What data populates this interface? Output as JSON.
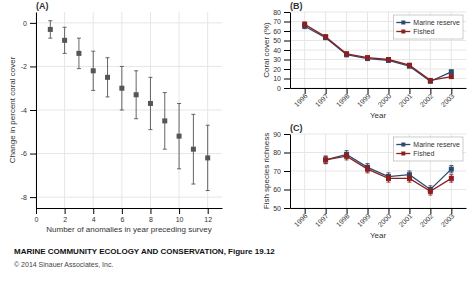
{
  "chart_data": [
    {
      "type": "scatter",
      "title": "(A)",
      "x": [
        1,
        2,
        3,
        4,
        5,
        6,
        7,
        8,
        9,
        10,
        11,
        12
      ],
      "y": [
        -0.3,
        -0.8,
        -1.4,
        -2.2,
        -2.5,
        -3.0,
        -3.3,
        -3.7,
        -4.5,
        -5.2,
        -5.8,
        -6.2
      ],
      "error_low": [
        0.4,
        0.6,
        0.7,
        0.9,
        0.9,
        1.0,
        1.1,
        1.2,
        1.3,
        1.5,
        1.6,
        1.5
      ],
      "error_high": [
        0.4,
        0.6,
        0.7,
        0.9,
        0.9,
        1.0,
        1.1,
        1.2,
        1.3,
        1.5,
        1.6,
        1.5
      ],
      "xlabel": "Number of anomalies in year preceding survey",
      "ylabel": "Change in percent coral cover",
      "xlim": [
        0,
        13
      ],
      "ylim": [
        -8.5,
        0.5
      ],
      "xticks": [
        0,
        2,
        4,
        6,
        8,
        10,
        12
      ],
      "yticks": [
        0,
        -2,
        -4,
        -6,
        -8
      ],
      "grid": true,
      "color": "#555555",
      "marker": "square",
      "annotations": [
        "MARINE COMMUNITY ECOLOGY AND CONSERVATION, Figure 19.12",
        "© 2014 Sinauer Associates, Inc."
      ]
    },
    {
      "type": "line",
      "title": "(B)",
      "x": [
        1996,
        1997,
        1998,
        1999,
        2000,
        2001,
        2002,
        2003
      ],
      "series": [
        {
          "name": "Marine reserve",
          "color": "#2c4a6e",
          "values": [
            65,
            53,
            35,
            31,
            29,
            23,
            7,
            17
          ],
          "errors": [
            2.5,
            2.0,
            2.0,
            1.5,
            1.5,
            1.5,
            1.0,
            2.0
          ]
        },
        {
          "name": "Fished",
          "color": "#8b2020",
          "values": [
            67,
            54,
            36,
            32,
            30,
            24,
            8,
            12
          ],
          "errors": [
            2.5,
            2.0,
            2.0,
            1.5,
            1.5,
            1.5,
            1.0,
            1.5
          ]
        }
      ],
      "xlabel": "Year",
      "ylabel": "Coral cover (%)",
      "xlim": [
        1995.3,
        2003.7
      ],
      "ylim": [
        0,
        80
      ],
      "xticks": [
        1996,
        1997,
        1998,
        1999,
        2000,
        2001,
        2002,
        2003
      ],
      "yticks": [
        0,
        10,
        20,
        30,
        40,
        50,
        60,
        70,
        80
      ],
      "grid": true,
      "legend": "upper right",
      "marker": "square"
    },
    {
      "type": "line",
      "title": "(C)",
      "x": [
        1996,
        1997,
        1998,
        1999,
        2000,
        2001,
        2002,
        2003
      ],
      "series": [
        {
          "name": "Marine reserve",
          "color": "#2c4a6e",
          "values": [
            null,
            76,
            79,
            72,
            67,
            68,
            60,
            71
          ],
          "errors": [
            null,
            2.0,
            2.0,
            2.0,
            2.0,
            2.0,
            2.0,
            2.0
          ]
        },
        {
          "name": "Fished",
          "color": "#8b2020",
          "values": [
            null,
            76,
            78,
            71,
            66,
            66,
            59,
            66
          ],
          "errors": [
            null,
            2.0,
            2.0,
            2.0,
            2.0,
            2.0,
            2.0,
            2.0
          ]
        }
      ],
      "xlabel": "Year",
      "ylabel": "Fish species richness",
      "xlim": [
        1995.3,
        2003.7
      ],
      "ylim": [
        50,
        90
      ],
      "xticks": [
        1996,
        1997,
        1998,
        1999,
        2000,
        2001,
        2002,
        2003
      ],
      "yticks": [
        50,
        60,
        70,
        80,
        90
      ],
      "grid": true,
      "legend": "upper right",
      "marker": "square"
    }
  ]
}
